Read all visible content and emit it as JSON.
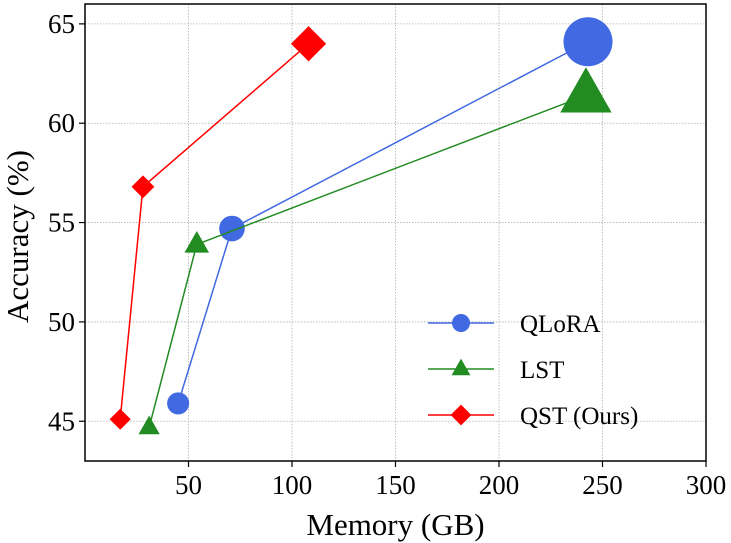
{
  "chart_data": {
    "type": "scatter",
    "xlabel": "Memory (GB)",
    "ylabel": "Accuracy (%)",
    "xlim": [
      0,
      300
    ],
    "ylim": [
      43,
      66
    ],
    "xticks": [
      50,
      100,
      150,
      200,
      250,
      300
    ],
    "yticks": [
      45,
      50,
      55,
      60,
      65
    ],
    "grid": true,
    "legend_position": "bottom-right",
    "series": [
      {
        "name": "QLoRA",
        "marker": "circle",
        "color": "#4169e1",
        "x": [
          45,
          71,
          243
        ],
        "y": [
          45.9,
          54.7,
          64.1
        ]
      },
      {
        "name": "LST",
        "marker": "triangle",
        "color": "#228b22",
        "x": [
          31,
          54,
          242
        ],
        "y": [
          44.7,
          53.9,
          61.4
        ]
      },
      {
        "name": "QST (Ours)",
        "marker": "diamond",
        "color": "#ff0000",
        "x": [
          17,
          28,
          108
        ],
        "y": [
          45.1,
          56.8,
          64.0
        ]
      }
    ]
  }
}
